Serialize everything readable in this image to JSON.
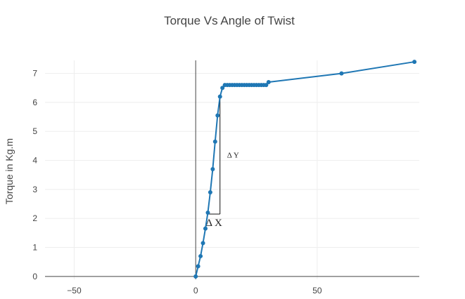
{
  "chart_data": {
    "type": "line",
    "title": "Torque Vs Angle of Twist",
    "xlabel": "",
    "ylabel": "Torque in Kg.m",
    "xlim": [
      -62,
      92
    ],
    "ylim": [
      -0.1,
      7.45
    ],
    "xticks": [
      -50,
      0,
      50
    ],
    "xtick_labels": [
      "−50",
      "0",
      "50"
    ],
    "yticks": [
      0,
      1,
      2,
      3,
      4,
      5,
      6,
      7
    ],
    "grid": true,
    "legend": "none",
    "series_color": "#1f77b4",
    "series": [
      {
        "x": [
          0,
          1,
          2,
          3,
          4,
          5,
          6,
          7,
          8,
          9,
          10,
          11,
          12,
          13,
          14,
          15,
          16,
          17,
          18,
          19,
          20,
          21,
          22,
          23,
          24,
          25,
          26,
          27,
          28,
          29,
          30,
          60,
          90
        ],
        "y": [
          0,
          0.35,
          0.7,
          1.15,
          1.65,
          2.2,
          2.9,
          3.7,
          4.65,
          5.55,
          6.2,
          6.5,
          6.6,
          6.6,
          6.6,
          6.6,
          6.6,
          6.6,
          6.6,
          6.6,
          6.6,
          6.6,
          6.6,
          6.6,
          6.6,
          6.6,
          6.6,
          6.6,
          6.6,
          6.6,
          6.7,
          7.0,
          7.4
        ]
      }
    ],
    "annotations": {
      "delta_y": "Δ Y",
      "delta_x": "Δ X"
    }
  }
}
